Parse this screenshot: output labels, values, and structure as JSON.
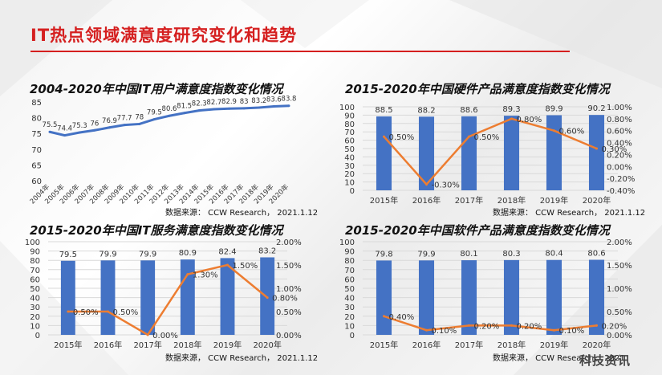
{
  "page": {
    "title": "IT热点领域满意度研究变化和趋势",
    "watermark": "科技资讯",
    "colors": {
      "title": "#d51f1f",
      "bar": "#4472c4",
      "line": "#ed7d31",
      "trend": "#4472c4"
    }
  },
  "charts": {
    "it_user": {
      "title": "2004-2020年中国IT用户满意度指数变化情况",
      "source": "数据来源：  CCW Research， 2021.1.12"
    },
    "hardware": {
      "title": "2015-2020年中国硬件产品满意度指数变化情况",
      "source": "数据来源：  CCW Research， 2021.1.12"
    },
    "service": {
      "title": "2015-2020年中国IT服务满意度指数变化情况",
      "source": "数据来源，  CCW Research，   2021.1.12"
    },
    "software": {
      "title": "2015-2020年中国软件产品满意度指数变化情况",
      "source": "数据来源，  CCW Research，   2021"
    }
  },
  "chart_data": [
    {
      "id": "it_user",
      "type": "line",
      "title": "2004-2020年中国IT用户满意度指数变化情况",
      "categories": [
        "2004年",
        "2005年",
        "2006年",
        "2007年",
        "2008年",
        "2009年",
        "2010年",
        "2011年",
        "2012年",
        "2013年",
        "2014年",
        "2015年",
        "2016年",
        "2017年",
        "2018年",
        "2019年",
        "2020年"
      ],
      "series": [
        {
          "values": [
            75.5,
            74.4,
            75.3,
            76,
            76.9,
            77.7,
            78,
            79.5,
            80.6,
            81.5,
            82.3,
            82.7,
            82.9,
            83,
            83.2,
            83.6,
            83.8
          ]
        }
      ],
      "data_labels": [
        "75.5",
        "74.4",
        "75.3",
        "76",
        "76.9",
        "77.7",
        "78",
        "79.5",
        "80.6",
        "81.5",
        "82.3",
        "82.7",
        "82.9",
        "83",
        "83.2",
        "83.6",
        "83.8"
      ],
      "ylim": [
        60,
        85
      ],
      "yticks": [
        60,
        65,
        70,
        75,
        80,
        85
      ],
      "ytick_labels": [
        "60",
        "65",
        "70",
        "75",
        "80",
        "85"
      ],
      "grid": false
    },
    {
      "id": "hardware",
      "type": "bar",
      "title": "2015-2020年中国硬件产品满意度指数变化情况",
      "categories": [
        "2015年",
        "2016年",
        "2017年",
        "2018年",
        "2019年",
        "2020年"
      ],
      "series": [
        {
          "values": [
            88.5,
            88.2,
            88.6,
            89.3,
            89.9,
            90.2
          ],
          "labels": [
            "88.5",
            "88.2",
            "88.6",
            "89.3",
            "89.9",
            "90.2"
          ]
        },
        {
          "type": "line",
          "axis": "right",
          "values": [
            0.5,
            -0.3,
            0.5,
            0.8,
            0.6,
            0.3
          ],
          "labels": [
            "0.50%",
            "-0.30%",
            "0.50%",
            "0.80%",
            "0.60%",
            "0.30%"
          ]
        }
      ],
      "ylim": [
        0,
        100
      ],
      "yticks": [
        0,
        10,
        20,
        30,
        40,
        50,
        60,
        70,
        80,
        90,
        100
      ],
      "ytick_labels": [
        "0",
        "10",
        "20",
        "30",
        "40",
        "50",
        "60",
        "70",
        "80",
        "90",
        "100"
      ],
      "y2lim": [
        -0.4,
        1.0
      ],
      "y2ticks": [
        -0.4,
        -0.2,
        0,
        0.2,
        0.4,
        0.6,
        0.8,
        1.0
      ],
      "y2tick_labels": [
        "-0.40%",
        "-0.20%",
        "0.00%",
        "0.20%",
        "0.40%",
        "0.60%",
        "0.80%",
        "1.00%"
      ],
      "grid": true
    },
    {
      "id": "service",
      "type": "bar",
      "title": "2015-2020年中国IT服务满意度指数变化情况",
      "categories": [
        "2015年",
        "2016年",
        "2017年",
        "2018年",
        "2019年",
        "2020年"
      ],
      "series": [
        {
          "values": [
            79.5,
            79.9,
            79.9,
            80.9,
            82.4,
            83.2
          ],
          "labels": [
            "79.5",
            "79.9",
            "79.9",
            "80.9",
            "82.4",
            "83.2"
          ]
        },
        {
          "type": "line",
          "axis": "right",
          "values": [
            0.5,
            0.5,
            0.0,
            1.3,
            1.5,
            0.8
          ],
          "labels": [
            "0.50%",
            "0.50%",
            "0.00%",
            "1.30%",
            "1.50%",
            "0.80%"
          ]
        }
      ],
      "ylim": [
        0,
        100
      ],
      "yticks": [
        0,
        10,
        20,
        30,
        40,
        50,
        60,
        70,
        80,
        90,
        100
      ],
      "ytick_labels": [
        "0",
        "10",
        "20",
        "30",
        "40",
        "50",
        "60",
        "70",
        "80",
        "90",
        "100"
      ],
      "y2lim": [
        0,
        2.0
      ],
      "y2ticks": [
        0,
        0.5,
        1.0,
        1.5,
        2.0
      ],
      "y2tick_labels": [
        "0.00%",
        "0.50%",
        "1.00%",
        "1.50%",
        "2.00%"
      ],
      "grid": true
    },
    {
      "id": "software",
      "type": "bar",
      "title": "2015-2020年中国软件产品满意度指数变化情况",
      "categories": [
        "2015年",
        "2016年",
        "2017年",
        "2018年",
        "2019年",
        "2020年"
      ],
      "series": [
        {
          "values": [
            79.8,
            79.9,
            80.1,
            80.3,
            80.4,
            80.6
          ],
          "labels": [
            "79.8",
            "79.9",
            "80.1",
            "80.3",
            "80.4",
            "80.6"
          ]
        },
        {
          "type": "line",
          "axis": "right",
          "values": [
            0.4,
            0.1,
            0.2,
            0.2,
            0.1,
            0.2
          ],
          "labels": [
            "0.40%",
            "0.10%",
            "0.20%",
            "0.20%",
            "0.10%",
            "0.20%"
          ]
        }
      ],
      "ylim": [
        0,
        100
      ],
      "yticks": [
        0,
        10,
        20,
        30,
        40,
        50,
        60,
        70,
        80,
        90,
        100
      ],
      "ytick_labels": [
        "0",
        "10",
        "20",
        "30",
        "40",
        "50",
        "60",
        "70",
        "80",
        "90",
        "100"
      ],
      "y2lim": [
        0,
        2.0
      ],
      "y2ticks": [
        0,
        0.5,
        1.0,
        1.5,
        2.0
      ],
      "y2tick_labels": [
        "0.00%",
        "0.50%",
        "1.00%",
        "1.50%",
        "2.00%"
      ],
      "grid": true
    }
  ]
}
